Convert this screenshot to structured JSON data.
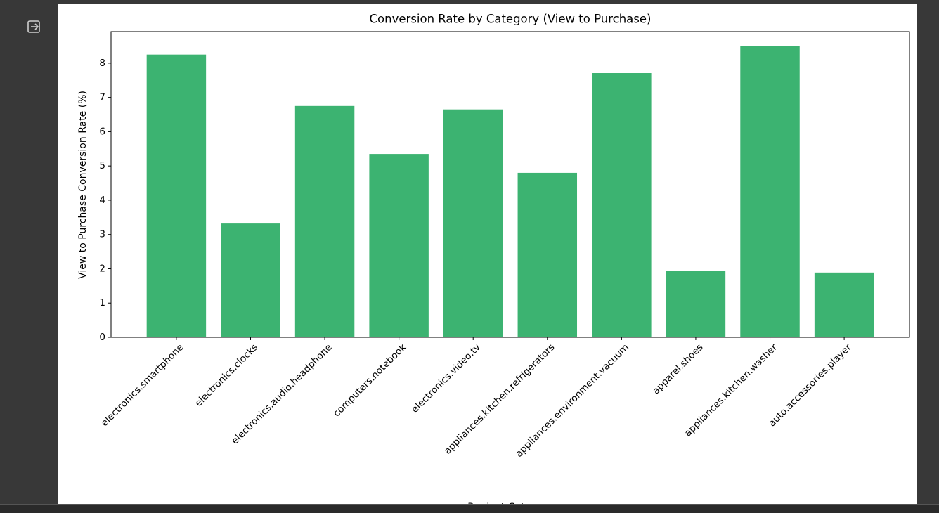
{
  "chart_data": {
    "type": "bar",
    "title": "Conversion Rate by Category (View to Purchase)",
    "x_label": "Product Category",
    "y_label": "View to Purchase Conversion Rate (%)",
    "categories": [
      "electronics.smartphone",
      "electronics.clocks",
      "electronics.audio.headphone",
      "computers.notebook",
      "electronics.video.tv",
      "appliances.kitchen.refrigerators",
      "appliances.environment.vacuum",
      "apparel.shoes",
      "appliances.kitchen.washer",
      "auto.accessories.player"
    ],
    "values": [
      8.25,
      3.32,
      6.75,
      5.35,
      6.65,
      4.8,
      7.71,
      1.93,
      8.49,
      1.89
    ],
    "color": "#3cb371",
    "ylim": [
      0,
      8.92
    ],
    "yticks": [
      0,
      1,
      2,
      3,
      4,
      5,
      6,
      7,
      8
    ],
    "grid": false
  }
}
